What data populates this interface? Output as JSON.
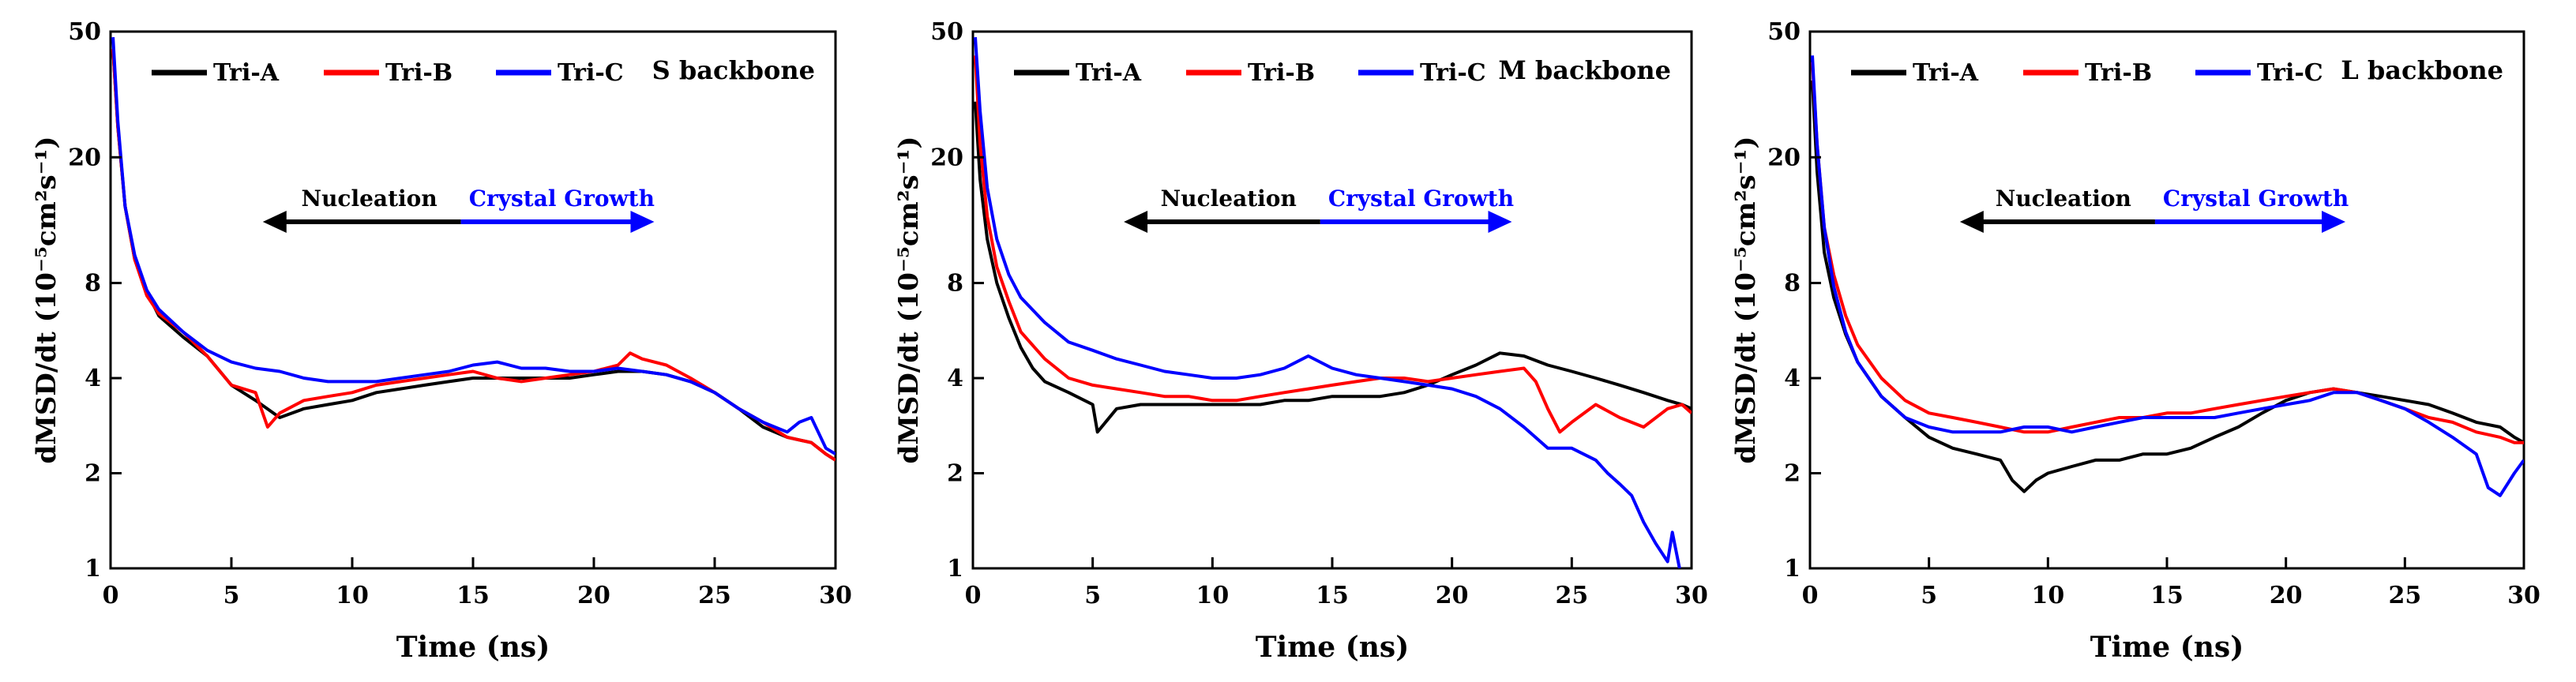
{
  "colors": {
    "Tri-A": "#000000",
    "Tri-B": "#ff0000",
    "Tri-C": "#0000ff",
    "arrow_left": "#000000",
    "arrow_right": "#0000ff"
  },
  "chart_data": [
    {
      "type": "line",
      "backbone_label": "S backbone",
      "xlabel": "Time (ns)",
      "ylabel": "dMSD/dt (10⁻⁵cm²s⁻¹)",
      "xlim": [
        0,
        30
      ],
      "ylim": [
        1,
        50
      ],
      "y_scale": "log",
      "xticks": [
        0,
        5,
        10,
        15,
        20,
        25,
        30
      ],
      "yticks": [
        1,
        2,
        4,
        8,
        20,
        50
      ],
      "legend_position": "top-left",
      "annotations": {
        "left_arrow": "Nucleation",
        "right_arrow": "Crystal Growth",
        "arrow_from_x": 14.5,
        "left_to_x": 6.3,
        "right_to_x": 22.5,
        "y": 12.5
      },
      "series": [
        {
          "name": "Tri-A",
          "x": [
            0.1,
            0.3,
            0.6,
            1,
            1.5,
            2,
            3,
            4,
            5,
            6,
            7,
            8,
            9,
            10,
            11,
            12,
            13,
            14,
            15,
            16,
            17,
            18,
            19,
            20,
            21,
            22,
            23,
            24,
            25,
            26,
            27,
            28,
            29,
            29.6,
            30
          ],
          "y": [
            44,
            25,
            14,
            9.5,
            7.5,
            6.3,
            5.4,
            4.7,
            3.8,
            3.4,
            3.0,
            3.2,
            3.3,
            3.4,
            3.6,
            3.7,
            3.8,
            3.9,
            4.0,
            4.0,
            4.0,
            4.0,
            4.0,
            4.1,
            4.2,
            4.2,
            4.1,
            3.9,
            3.6,
            3.2,
            2.8,
            2.6,
            2.5,
            2.3,
            2.2
          ]
        },
        {
          "name": "Tri-B",
          "x": [
            0.1,
            0.3,
            0.6,
            1,
            1.5,
            2,
            3,
            4,
            5,
            6,
            6.5,
            7,
            8,
            9,
            10,
            11,
            12,
            13,
            14,
            15,
            16,
            17,
            18,
            19,
            20,
            21,
            21.5,
            22,
            23,
            24,
            25,
            26,
            27,
            28,
            29,
            29.6,
            30
          ],
          "y": [
            44,
            25,
            14,
            9.5,
            7.3,
            6.4,
            5.6,
            4.7,
            3.8,
            3.6,
            2.8,
            3.1,
            3.4,
            3.5,
            3.6,
            3.8,
            3.9,
            4.0,
            4.1,
            4.2,
            4.0,
            3.9,
            4.0,
            4.1,
            4.2,
            4.4,
            4.8,
            4.6,
            4.4,
            4.0,
            3.6,
            3.2,
            2.9,
            2.6,
            2.5,
            2.3,
            2.2
          ]
        },
        {
          "name": "Tri-C",
          "x": [
            0.1,
            0.3,
            0.6,
            1,
            1.5,
            2,
            3,
            4,
            5,
            6,
            7,
            8,
            9,
            10,
            11,
            12,
            13,
            14,
            15,
            16,
            17,
            18,
            19,
            20,
            21,
            22,
            23,
            24,
            25,
            26,
            27,
            28,
            28.5,
            29,
            29.6,
            30
          ],
          "y": [
            48,
            26,
            14,
            9.8,
            7.6,
            6.6,
            5.6,
            4.9,
            4.5,
            4.3,
            4.2,
            4.0,
            3.9,
            3.9,
            3.9,
            4.0,
            4.1,
            4.2,
            4.4,
            4.5,
            4.3,
            4.3,
            4.2,
            4.2,
            4.3,
            4.2,
            4.1,
            3.9,
            3.6,
            3.2,
            2.9,
            2.7,
            2.9,
            3.0,
            2.4,
            2.3
          ]
        }
      ]
    },
    {
      "type": "line",
      "backbone_label": "M backbone",
      "xlabel": "Time (ns)",
      "ylabel": "dMSD/dt (10⁻⁵cm²s⁻¹)",
      "xlim": [
        0,
        30
      ],
      "ylim": [
        1,
        50
      ],
      "y_scale": "log",
      "xticks": [
        0,
        5,
        10,
        15,
        20,
        25,
        30
      ],
      "yticks": [
        1,
        2,
        4,
        8,
        20,
        50
      ],
      "legend_position": "top-left",
      "annotations": {
        "left_arrow": "Nucleation",
        "right_arrow": "Crystal Growth",
        "arrow_from_x": 14.5,
        "left_to_x": 6.3,
        "right_to_x": 22.5,
        "y": 12.5
      },
      "series": [
        {
          "name": "Tri-A",
          "x": [
            0.1,
            0.3,
            0.6,
            1,
            1.5,
            2,
            2.5,
            3,
            4,
            5,
            5.2,
            6,
            7,
            8,
            9,
            10,
            11,
            12,
            13,
            14,
            15,
            16,
            17,
            18,
            19,
            20,
            21,
            22,
            23,
            24,
            25,
            26,
            27,
            28,
            29,
            29.6,
            30
          ],
          "y": [
            30,
            17,
            11,
            8,
            6.2,
            5.0,
            4.3,
            3.9,
            3.6,
            3.3,
            2.7,
            3.2,
            3.3,
            3.3,
            3.3,
            3.3,
            3.3,
            3.3,
            3.4,
            3.4,
            3.5,
            3.5,
            3.5,
            3.6,
            3.8,
            4.1,
            4.4,
            4.8,
            4.7,
            4.4,
            4.2,
            4.0,
            3.8,
            3.6,
            3.4,
            3.3,
            3.2
          ]
        },
        {
          "name": "Tri-B",
          "x": [
            0.1,
            0.3,
            0.6,
            1,
            1.5,
            2,
            3,
            4,
            5,
            6,
            7,
            8,
            9,
            10,
            11,
            12,
            13,
            14,
            15,
            16,
            17,
            18,
            19,
            20,
            21,
            22,
            23,
            23.5,
            24,
            24.5,
            25,
            26,
            27,
            28,
            29,
            29.6,
            30
          ],
          "y": [
            42,
            22,
            13,
            9,
            7.0,
            5.6,
            4.6,
            4.0,
            3.8,
            3.7,
            3.6,
            3.5,
            3.5,
            3.4,
            3.4,
            3.5,
            3.6,
            3.7,
            3.8,
            3.9,
            4.0,
            4.0,
            3.9,
            4.0,
            4.1,
            4.2,
            4.3,
            3.9,
            3.2,
            2.7,
            2.9,
            3.3,
            3.0,
            2.8,
            3.2,
            3.3,
            3.1
          ]
        },
        {
          "name": "Tri-C",
          "x": [
            0.1,
            0.3,
            0.6,
            1,
            1.5,
            2,
            3,
            4,
            5,
            6,
            7,
            8,
            9,
            10,
            11,
            12,
            13,
            14,
            15,
            16,
            17,
            18,
            19,
            20,
            21,
            22,
            23,
            24,
            25,
            26,
            26.5,
            27,
            27.5,
            28,
            28.5,
            29,
            29.2,
            29.5
          ],
          "y": [
            48,
            28,
            16,
            11,
            8.5,
            7.2,
            6.0,
            5.2,
            4.9,
            4.6,
            4.4,
            4.2,
            4.1,
            4.0,
            4.0,
            4.1,
            4.3,
            4.7,
            4.3,
            4.1,
            4.0,
            3.9,
            3.8,
            3.7,
            3.5,
            3.2,
            2.8,
            2.4,
            2.4,
            2.2,
            2.0,
            1.85,
            1.7,
            1.4,
            1.2,
            1.05,
            1.3,
            1.0
          ]
        }
      ]
    },
    {
      "type": "line",
      "backbone_label": "L backbone",
      "xlabel": "Time (ns)",
      "ylabel": "dMSD/dt (10⁻⁵cm²s⁻¹)",
      "xlim": [
        0,
        30
      ],
      "ylim": [
        1,
        50
      ],
      "y_scale": "log",
      "xticks": [
        0,
        5,
        10,
        15,
        20,
        25,
        30
      ],
      "yticks": [
        1,
        2,
        4,
        8,
        20,
        50
      ],
      "legend_position": "top-left",
      "annotations": {
        "left_arrow": "Nucleation",
        "right_arrow": "Crystal Growth",
        "arrow_from_x": 14.5,
        "left_to_x": 6.3,
        "right_to_x": 22.5,
        "y": 12.5
      },
      "series": [
        {
          "name": "Tri-A",
          "x": [
            0.1,
            0.3,
            0.6,
            1,
            1.5,
            2,
            3,
            4,
            5,
            6,
            7,
            8,
            8.5,
            9,
            9.5,
            10,
            11,
            12,
            13,
            14,
            15,
            16,
            17,
            18,
            19,
            20,
            21,
            22,
            23,
            24,
            25,
            26,
            27,
            28,
            29,
            29.6,
            30
          ],
          "y": [
            35,
            18,
            10,
            7.2,
            5.5,
            4.5,
            3.5,
            3.0,
            2.6,
            2.4,
            2.3,
            2.2,
            1.9,
            1.75,
            1.9,
            2.0,
            2.1,
            2.2,
            2.2,
            2.3,
            2.3,
            2.4,
            2.6,
            2.8,
            3.1,
            3.4,
            3.6,
            3.7,
            3.6,
            3.5,
            3.4,
            3.3,
            3.1,
            2.9,
            2.8,
            2.6,
            2.5
          ]
        },
        {
          "name": "Tri-B",
          "x": [
            0.1,
            0.3,
            0.6,
            1,
            1.5,
            2,
            3,
            4,
            5,
            6,
            7,
            8,
            9,
            10,
            11,
            12,
            13,
            14,
            15,
            16,
            17,
            18,
            19,
            20,
            21,
            22,
            23,
            24,
            25,
            26,
            27,
            28,
            29,
            29.6,
            30
          ],
          "y": [
            40,
            22,
            12,
            8.5,
            6.3,
            5.1,
            4.0,
            3.4,
            3.1,
            3.0,
            2.9,
            2.8,
            2.7,
            2.7,
            2.8,
            2.9,
            3.0,
            3.0,
            3.1,
            3.1,
            3.2,
            3.3,
            3.4,
            3.5,
            3.6,
            3.7,
            3.6,
            3.4,
            3.2,
            3.0,
            2.9,
            2.7,
            2.6,
            2.5,
            2.5
          ]
        },
        {
          "name": "Tri-C",
          "x": [
            0.1,
            0.3,
            0.6,
            1,
            1.5,
            2,
            3,
            4,
            5,
            6,
            7,
            8,
            9,
            10,
            11,
            12,
            13,
            14,
            15,
            16,
            17,
            18,
            19,
            20,
            21,
            22,
            23,
            24,
            25,
            26,
            27,
            28,
            28.5,
            29,
            29.6,
            30
          ],
          "y": [
            42,
            22,
            12,
            7.8,
            5.6,
            4.5,
            3.5,
            3.0,
            2.8,
            2.7,
            2.7,
            2.7,
            2.8,
            2.8,
            2.7,
            2.8,
            2.9,
            3.0,
            3.0,
            3.0,
            3.0,
            3.1,
            3.2,
            3.3,
            3.4,
            3.6,
            3.6,
            3.4,
            3.2,
            2.9,
            2.6,
            2.3,
            1.8,
            1.7,
            2.0,
            2.2
          ]
        }
      ]
    }
  ]
}
